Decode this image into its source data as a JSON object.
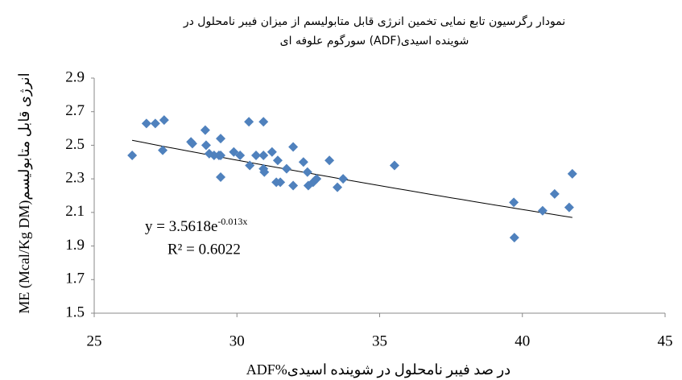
{
  "chart_data": {
    "type": "scatter",
    "title": [
      "نمودار رگرسیون تابع نمایی تخمین انرژی قابل متابولیسم از میزان فیبر نامحلول در",
      "شوینده اسیدی(ADF) سورگوم علوفه ای"
    ],
    "x_label": "ADF%در صد فیبر نامحلول در شوینده اسیدی",
    "y_label": "ME (Mcal/Kg DM)انرژی قابل متابولیسم",
    "color": "#4f81bd",
    "x": [
      26.33,
      26.83,
      27.14,
      27.45,
      27.4,
      28.39,
      28.44,
      28.89,
      28.92,
      29.03,
      29.2,
      29.37,
      29.43,
      29.43,
      29.43,
      29.89,
      30.11,
      30.42,
      30.45,
      30.67,
      30.93,
      30.93,
      30.93,
      30.96,
      31.23,
      31.38,
      31.52,
      31.43,
      31.74,
      31.97,
      31.97,
      32.33,
      32.47,
      32.5,
      32.67,
      32.79,
      33.24,
      33.52,
      33.72,
      35.52,
      39.7,
      39.72,
      40.71,
      41.13,
      41.64,
      41.75
    ],
    "values": [
      2.44,
      2.63,
      2.63,
      2.65,
      2.47,
      2.52,
      2.51,
      2.59,
      2.5,
      2.45,
      2.44,
      2.44,
      2.54,
      2.44,
      2.31,
      2.46,
      2.44,
      2.64,
      2.38,
      2.44,
      2.64,
      2.44,
      2.36,
      2.34,
      2.46,
      2.28,
      2.28,
      2.41,
      2.36,
      2.49,
      2.26,
      2.4,
      2.34,
      2.26,
      2.28,
      2.3,
      2.41,
      2.25,
      2.3,
      2.38,
      2.16,
      1.95,
      2.11,
      2.21,
      2.13,
      2.33
    ],
    "xlim": [
      25,
      45
    ],
    "xticks": [
      25,
      30,
      35,
      40,
      45
    ],
    "ylim": [
      1.5,
      2.9
    ],
    "yticks": [
      1.5,
      1.7,
      1.9,
      2.1,
      2.3,
      2.5,
      2.7,
      2.9
    ],
    "trendline": {
      "equation": "y = 3.5618e",
      "exponent": "-0.013x",
      "r2": "R² = 0.6022"
    }
  }
}
